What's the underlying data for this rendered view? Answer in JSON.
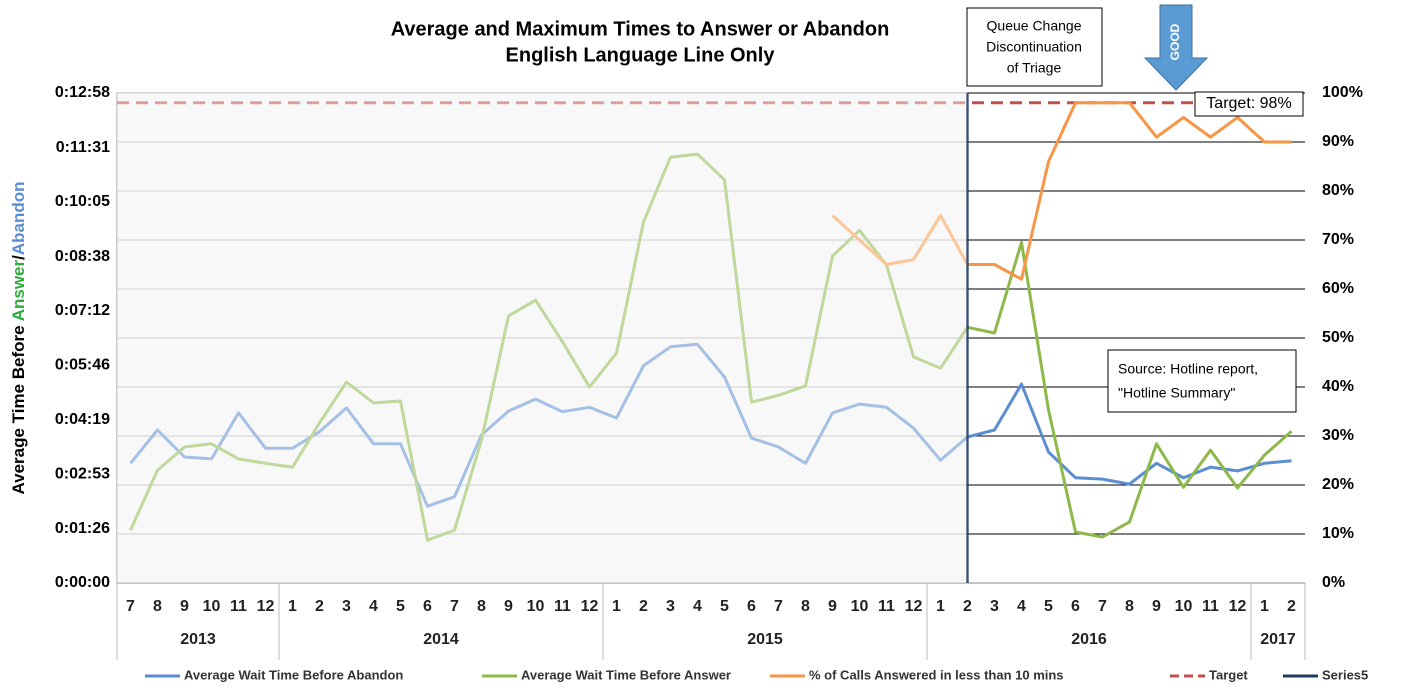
{
  "chart_data": {
    "type": "line",
    "title": "Average and Maximum Times to Answer or Abandon",
    "subtitle": "English Language Line Only",
    "y_label_parts": [
      {
        "text": "Average Time Before ",
        "color": "#000000"
      },
      {
        "text": "Answer",
        "color": "#2eab3a"
      },
      {
        "text": "/",
        "color": "#000000"
      },
      {
        "text": "Abandon",
        "color": "#5b8dd0"
      }
    ],
    "categories": [
      "7",
      "8",
      "9",
      "10",
      "11",
      "12",
      "1",
      "2",
      "3",
      "4",
      "5",
      "6",
      "7",
      "8",
      "9",
      "10",
      "11",
      "12",
      "1",
      "2",
      "3",
      "4",
      "5",
      "6",
      "7",
      "8",
      "9",
      "10",
      "11",
      "12",
      "1",
      "2",
      "3",
      "4",
      "5",
      "6",
      "7",
      "8",
      "9",
      "10",
      "11",
      "12",
      "1",
      "2"
    ],
    "year_groups": [
      {
        "label": "2013",
        "count": 6
      },
      {
        "label": "2014",
        "count": 12
      },
      {
        "label": "2015",
        "count": 12
      },
      {
        "label": "2016",
        "count": 12
      },
      {
        "label": "2017",
        "count": 2
      }
    ],
    "series": [
      {
        "name": "Average Wait Time Before Abandon",
        "color": "#5b8dd0",
        "values": [
          190,
          243,
          200,
          197,
          270,
          214,
          214,
          240,
          278,
          221,
          221,
          122,
          137,
          235,
          273,
          292,
          272,
          279,
          262,
          345,
          375,
          379,
          327,
          230,
          216,
          190,
          270,
          284,
          279,
          246,
          195,
          232,
          243,
          316,
          208,
          167,
          165,
          157,
          190,
          167,
          184,
          178,
          190,
          194
        ]
      },
      {
        "name": "Average Wait Time Before Answer",
        "color": "#8db84a",
        "values": [
          84,
          179,
          216,
          221,
          197,
          190,
          184,
          254,
          319,
          286,
          289,
          68,
          84,
          227,
          424,
          449,
          383,
          311,
          365,
          573,
          676,
          681,
          640,
          287,
          298,
          313,
          519,
          560,
          505,
          359,
          341,
          406,
          397,
          541,
          275,
          81,
          73,
          97,
          221,
          152,
          211,
          151,
          203,
          241
        ]
      },
      {
        "name": "% of Calls Answered in less than 10 mins",
        "color": "#f79646",
        "axis": "y2",
        "values": [
          null,
          null,
          null,
          null,
          null,
          null,
          null,
          null,
          null,
          null,
          null,
          null,
          null,
          null,
          null,
          null,
          null,
          null,
          null,
          null,
          null,
          null,
          null,
          null,
          null,
          null,
          75,
          70,
          65,
          66,
          75,
          65,
          65,
          62,
          86,
          98,
          98,
          98,
          91,
          95,
          91,
          95,
          90,
          90
        ]
      }
    ],
    "target": {
      "name": "Target",
      "color": "#c0504d",
      "value": 98,
      "label": "Target: 98%"
    },
    "divider": {
      "name": "Series5",
      "color": "#1f3864",
      "index": 31
    },
    "ylim": [
      0,
      778
    ],
    "yticks": [
      {
        "value": 0,
        "label": "0:00:00"
      },
      {
        "value": 86,
        "label": "0:01:26"
      },
      {
        "value": 173,
        "label": "0:02:53"
      },
      {
        "value": 259,
        "label": "0:04:19"
      },
      {
        "value": 346,
        "label": "0:05:46"
      },
      {
        "value": 432,
        "label": "0:07:12"
      },
      {
        "value": 518,
        "label": "0:08:38"
      },
      {
        "value": 605,
        "label": "0:10:05"
      },
      {
        "value": 691,
        "label": "0:11:31"
      },
      {
        "value": 778,
        "label": "0:12:58"
      }
    ],
    "y2lim": [
      0,
      100
    ],
    "y2ticks": [
      {
        "value": 0,
        "label": "0%"
      },
      {
        "value": 10,
        "label": "10%"
      },
      {
        "value": 20,
        "label": "20%"
      },
      {
        "value": 30,
        "label": "30%"
      },
      {
        "value": 40,
        "label": "40%"
      },
      {
        "value": 50,
        "label": "50%"
      },
      {
        "value": 60,
        "label": "60%"
      },
      {
        "value": 70,
        "label": "70%"
      },
      {
        "value": 80,
        "label": "80%"
      },
      {
        "value": 90,
        "label": "90%"
      },
      {
        "value": 100,
        "label": "100%"
      }
    ],
    "grid": true,
    "annotations": {
      "queue_change": [
        "Queue Change",
        "Discontinuation",
        "of Triage"
      ],
      "good": "GOOD",
      "source": [
        "Source: Hotline report,",
        "\"Hotline Summary\""
      ]
    }
  }
}
